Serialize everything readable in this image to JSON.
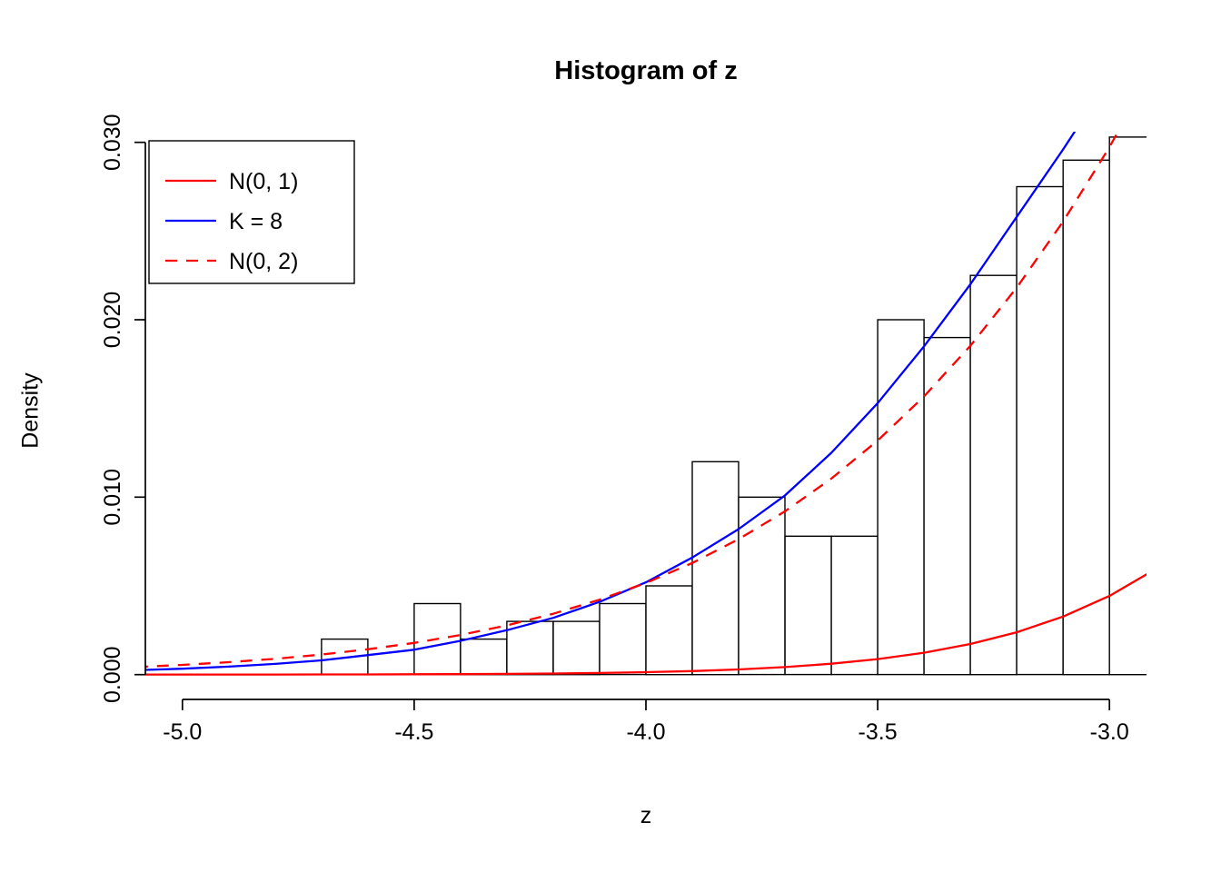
{
  "chart_data": {
    "type": "histogram",
    "title": "Histogram of z",
    "xlabel": "z",
    "ylabel": "Density",
    "x_ticks": [
      -5.0,
      -4.5,
      -4.0,
      -3.5,
      -3.0
    ],
    "x_tick_labels": [
      "-5.0",
      "-4.5",
      "-4.0",
      "-3.5",
      "-3.0"
    ],
    "y_ticks": [
      0,
      0.01,
      0.02,
      0.03
    ],
    "y_tick_labels": [
      "0.000",
      "0.010",
      "0.020",
      "0.030"
    ],
    "usr": {
      "xlim": [
        -5.08,
        -2.92
      ],
      "ylim": [
        -0.0014,
        0.0306
      ]
    },
    "grid": false,
    "bar_fill": "#ffffff",
    "bar_border": "#000000",
    "bins": {
      "start": -4.7,
      "width": 0.1,
      "densities": [
        0.002,
        0,
        0.004,
        0.002,
        0.003,
        0.003,
        0.004,
        0.005,
        0.012,
        0.01,
        0.0078,
        0.0078,
        0.02,
        0.019,
        0.0225,
        0.0275,
        0.029,
        0.0303
      ]
    },
    "curves": [
      {
        "name": "N(0, 1)",
        "key": "normal-0-1",
        "color": "#ff0000",
        "style": "solid",
        "points": [
          [
            -5.1,
            9e-07
          ],
          [
            -5.0,
            1.5e-06
          ],
          [
            -4.9,
            2.4e-06
          ],
          [
            -4.8,
            4e-06
          ],
          [
            -4.7,
            6.4e-06
          ],
          [
            -4.6,
            1.01e-05
          ],
          [
            -4.5,
            1.6e-05
          ],
          [
            -4.4,
            2.49e-05
          ],
          [
            -4.3,
            3.85e-05
          ],
          [
            -4.2,
            5.89e-05
          ],
          [
            -4.1,
            8.93e-05
          ],
          [
            -4.0,
            0.000134
          ],
          [
            -3.9,
            0.000199
          ],
          [
            -3.8,
            0.000292
          ],
          [
            -3.7,
            0.000425
          ],
          [
            -3.6,
            0.000612
          ],
          [
            -3.5,
            0.000873
          ],
          [
            -3.4,
            0.001232
          ],
          [
            -3.3,
            0.001723
          ],
          [
            -3.2,
            0.002384
          ],
          [
            -3.1,
            0.003267
          ],
          [
            -3.0,
            0.004432
          ],
          [
            -2.9,
            0.005953
          ]
        ]
      },
      {
        "name": "K = 8",
        "key": "k-8",
        "color": "#0000ff",
        "style": "solid",
        "points": [
          [
            -5.1,
            0.00025
          ],
          [
            -5.0,
            0.00033
          ],
          [
            -4.9,
            0.00045
          ],
          [
            -4.8,
            0.0006
          ],
          [
            -4.7,
            0.0008
          ],
          [
            -4.6,
            0.0011
          ],
          [
            -4.5,
            0.0014
          ],
          [
            -4.4,
            0.0019
          ],
          [
            -4.3,
            0.0025
          ],
          [
            -4.2,
            0.0032
          ],
          [
            -4.1,
            0.0041
          ],
          [
            -4.0,
            0.0052
          ],
          [
            -3.9,
            0.0066
          ],
          [
            -3.8,
            0.0082
          ],
          [
            -3.7,
            0.0101
          ],
          [
            -3.6,
            0.0125
          ],
          [
            -3.5,
            0.0153
          ],
          [
            -3.4,
            0.0185
          ],
          [
            -3.3,
            0.022
          ],
          [
            -3.2,
            0.0258
          ],
          [
            -3.1,
            0.0296
          ],
          [
            -3.0,
            0.0336
          ],
          [
            -2.9,
            0.038
          ]
        ]
      },
      {
        "name": "N(0, 2)",
        "key": "normal-0-2",
        "color": "#ff0000",
        "style": "dashed",
        "points": [
          [
            -5.1,
            0.000423
          ],
          [
            -5.0,
            0.000545
          ],
          [
            -4.9,
            0.000697
          ],
          [
            -4.8,
            0.000889
          ],
          [
            -4.7,
            0.001127
          ],
          [
            -4.6,
            0.001424
          ],
          [
            -4.5,
            0.001786
          ],
          [
            -4.4,
            0.002231
          ],
          [
            -4.3,
            0.002772
          ],
          [
            -4.2,
            0.003429
          ],
          [
            -4.1,
            0.004221
          ],
          [
            -4.0,
            0.005166
          ],
          [
            -3.9,
            0.006289
          ],
          [
            -3.8,
            0.007631
          ],
          [
            -3.7,
            0.009204
          ],
          [
            -3.6,
            0.011048
          ],
          [
            -3.5,
            0.013194
          ],
          [
            -3.4,
            0.015678
          ],
          [
            -3.3,
            0.018533
          ],
          [
            -3.2,
            0.021808
          ],
          [
            -3.1,
            0.025534
          ],
          [
            -3.0,
            0.029732
          ],
          [
            -2.9,
            0.03446
          ]
        ]
      }
    ],
    "legend": {
      "position": "top-left",
      "entries": [
        {
          "label": "N(0, 1)",
          "color": "#ff0000",
          "style": "solid"
        },
        {
          "label": "K = 8",
          "color": "#0000ff",
          "style": "solid"
        },
        {
          "label": "N(0, 2)",
          "color": "#ff0000",
          "style": "dashed"
        }
      ]
    }
  }
}
